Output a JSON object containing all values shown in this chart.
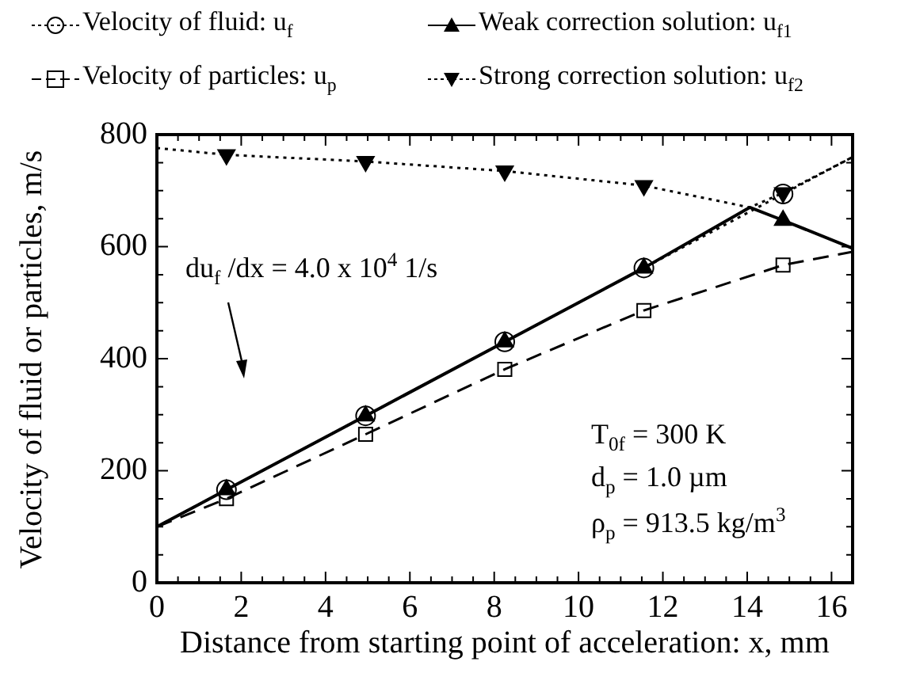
{
  "chart_data": {
    "type": "line",
    "xlabel": "Distance from starting point of acceleration: x, mm",
    "ylabel": "Velocity of fluid or particles, m/s",
    "xlim": [
      0,
      16.5
    ],
    "xticks": [
      0,
      2,
      4,
      6,
      8,
      10,
      12,
      14,
      16
    ],
    "ylim": [
      0,
      800
    ],
    "yticks": [
      0,
      200,
      400,
      600,
      800
    ],
    "grid": false,
    "legend": "top",
    "series": [
      {
        "name": "Velocity of fluid: u$_{f}$",
        "color": "#000000",
        "marker": "circle",
        "line_style": "dotted",
        "x": [
          0,
          1.65,
          4.95,
          8.25,
          11.55,
          14.85,
          16.5
        ],
        "values": [
          100,
          166,
          298,
          430,
          562,
          694,
          760
        ]
      },
      {
        "name": "Velocity of particles: u$_{p}$",
        "color": "#000000",
        "marker": "square",
        "line_style": "dashed",
        "x": [
          0,
          1.65,
          4.95,
          8.25,
          11.55,
          14.85,
          16.5
        ],
        "values": [
          100,
          150,
          265,
          381,
          486,
          567,
          591
        ]
      },
      {
        "name": "Weak correction solution: u$_{f1}$",
        "color": "#000000",
        "marker": "triangle",
        "line_style": "solid",
        "x": [
          0,
          1.65,
          4.95,
          8.25,
          11.55,
          14.06,
          14.85,
          16.5
        ],
        "values": [
          100,
          166,
          298,
          430,
          562,
          670,
          647,
          597
        ]
      },
      {
        "name": "Strong correction solution: u$_{f2}$",
        "color": "#000000",
        "marker": "triangle-down",
        "line_style": "dotted",
        "x": [
          0,
          1.65,
          4.95,
          8.25,
          11.55,
          14.06,
          14.85,
          16.5
        ],
        "values": [
          776,
          764,
          752,
          735,
          709,
          670,
          696,
          760
        ]
      }
    ],
    "annotations": [
      "du$_{f}$ /dx = 4.0 x 10$^{4}$ 1/s",
      "T$_{0f}$ = 300 K",
      "d$_{p}$ = 1.0 µm",
      "ρ$_{p}$ = 913.5 kg/m$^{3}$"
    ]
  }
}
